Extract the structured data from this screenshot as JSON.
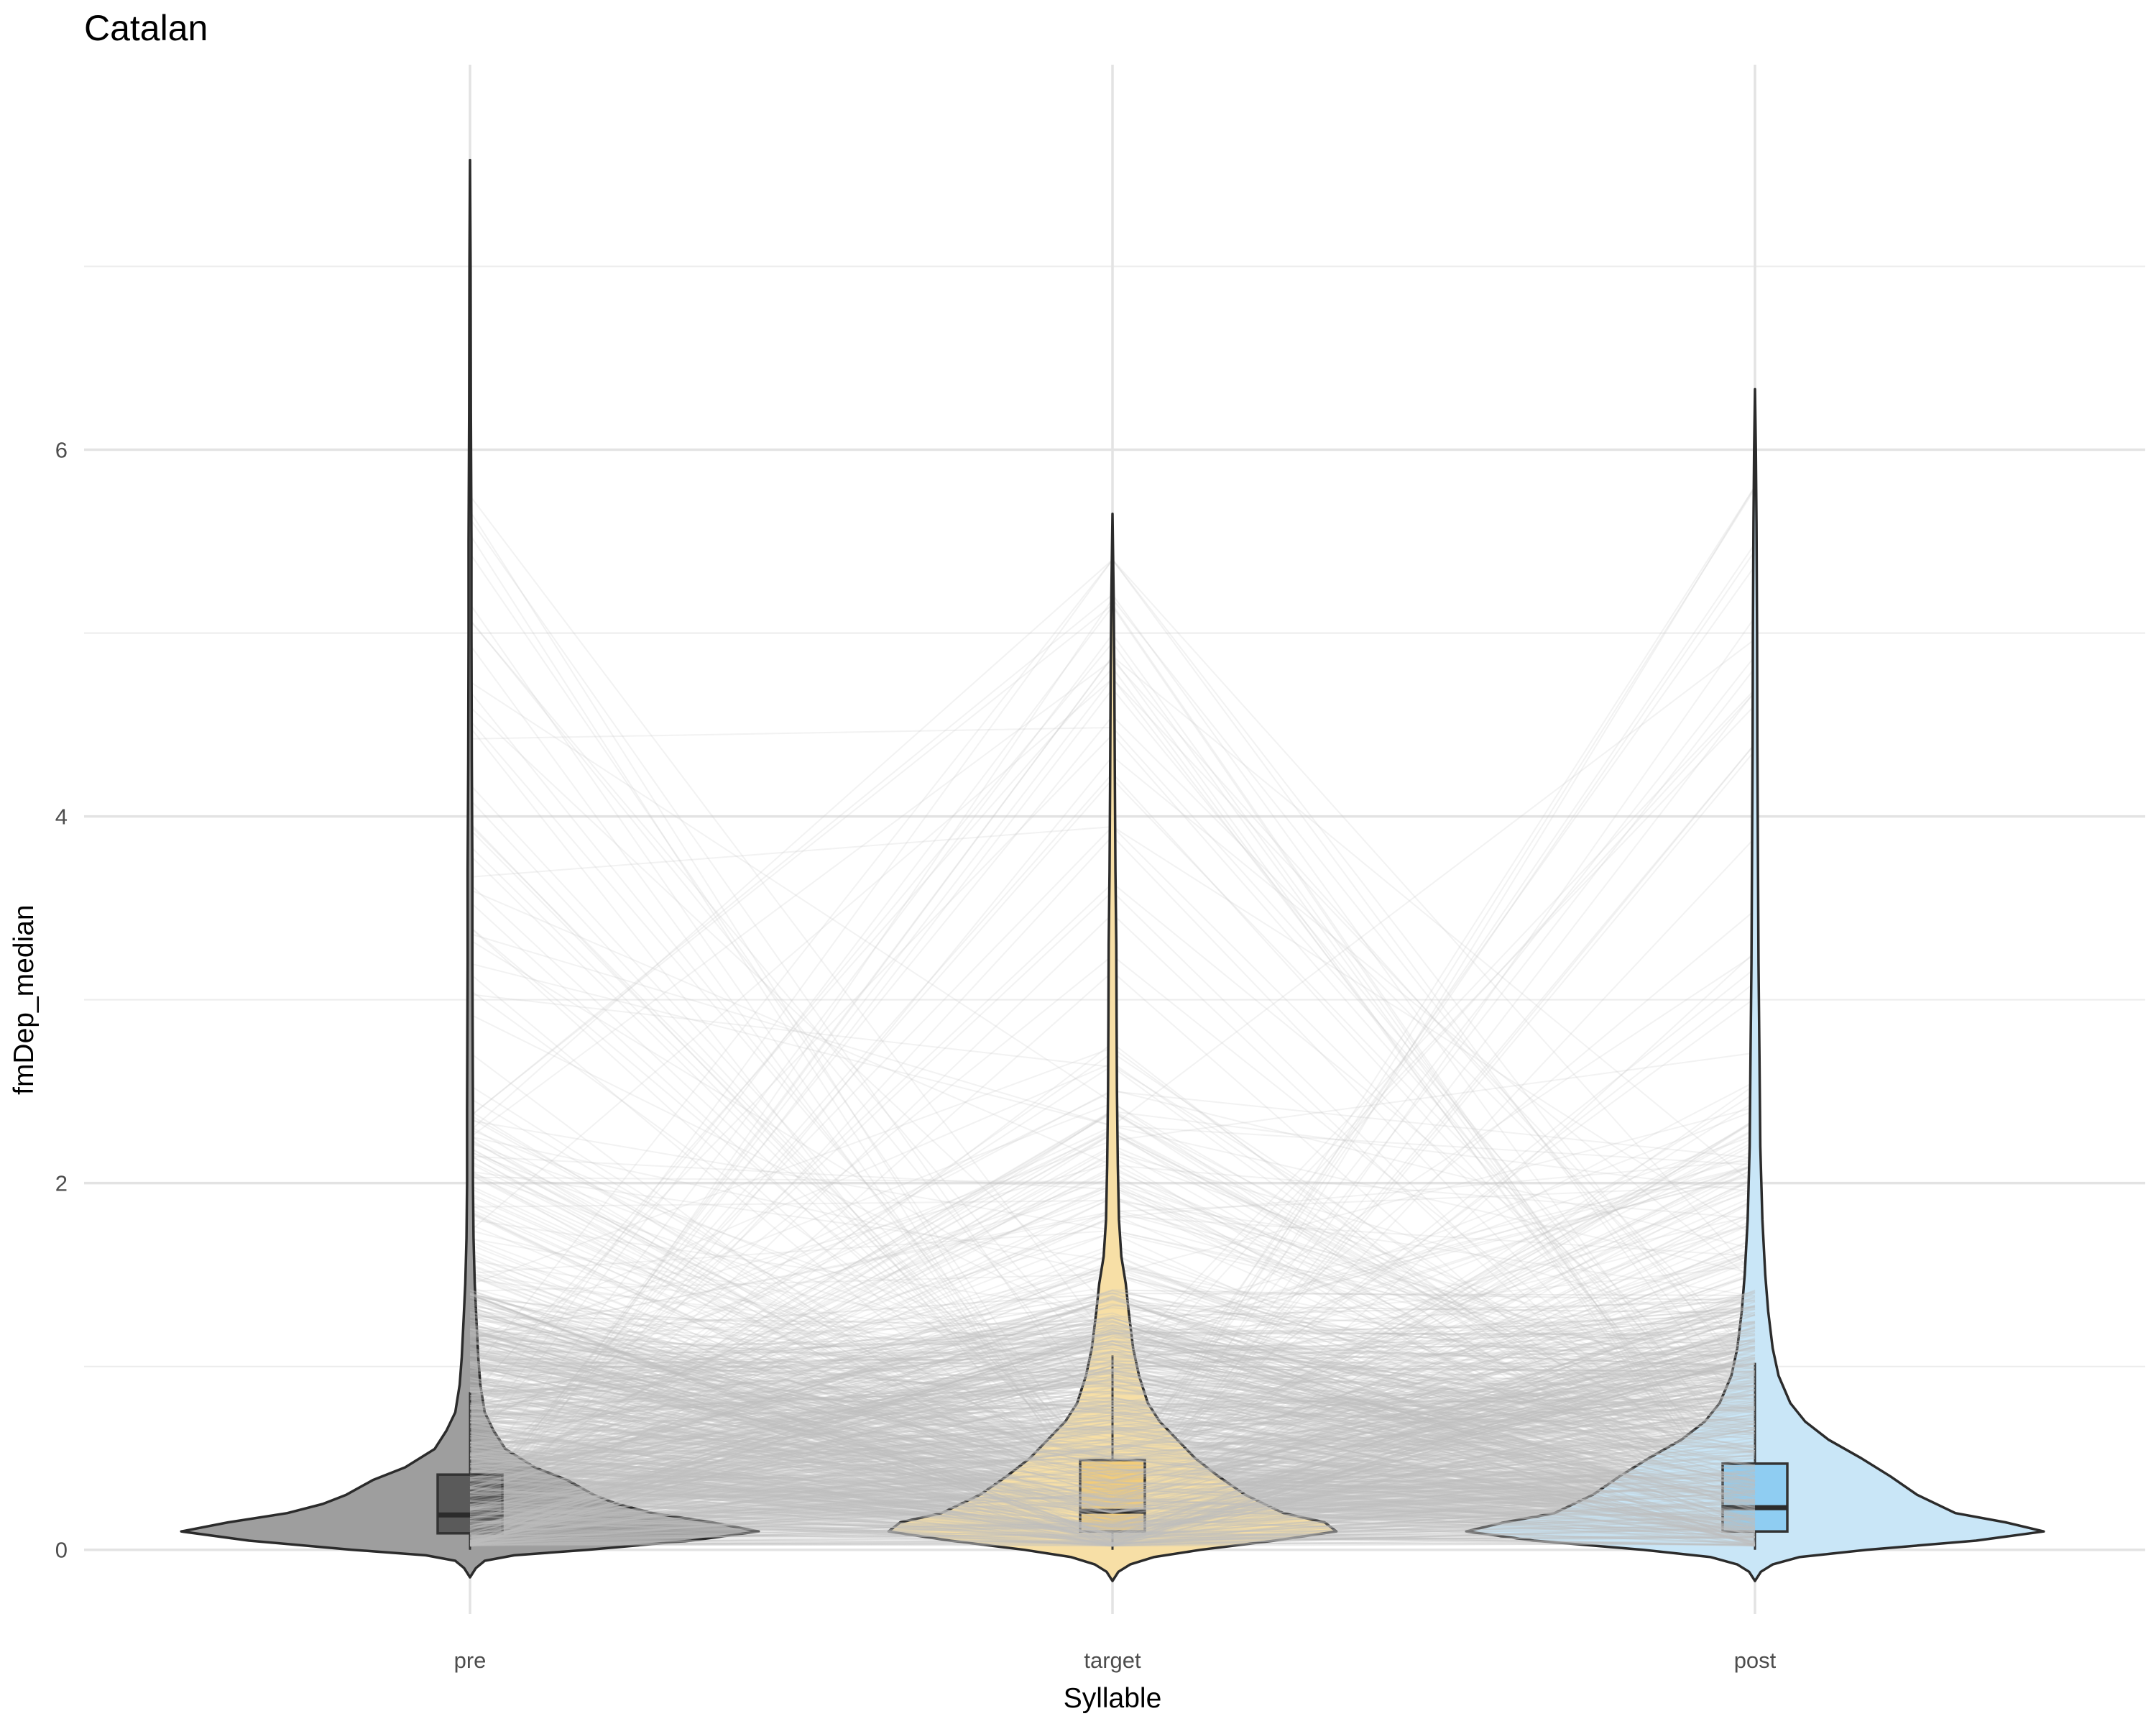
{
  "chart_data": {
    "type": "violin",
    "title": "Catalan",
    "xlabel": "Syllable",
    "ylabel": "fmDep_median",
    "categories": [
      "pre",
      "target",
      "post"
    ],
    "ylim": [
      -0.35,
      8.1
    ],
    "y_ticks": [
      0,
      2,
      4,
      6
    ],
    "y_minor_ticks": [
      1,
      3,
      5,
      7
    ],
    "grid": true,
    "legend": "none",
    "series": [
      {
        "category": "pre",
        "color": "#9e9e9e",
        "box": {
          "q1": 0.09,
          "median": 0.19,
          "q3": 0.41,
          "whisker_low": 0.0,
          "whisker_high": 0.86
        },
        "max": 7.58,
        "min": -0.15,
        "density_profile": [
          [
            -0.15,
            0.0
          ],
          [
            -0.1,
            0.02
          ],
          [
            -0.06,
            0.05
          ],
          [
            -0.03,
            0.15
          ],
          [
            0.0,
            0.4
          ],
          [
            0.05,
            0.75
          ],
          [
            0.1,
            0.98
          ],
          [
            0.15,
            0.82
          ],
          [
            0.2,
            0.62
          ],
          [
            0.25,
            0.5
          ],
          [
            0.3,
            0.42
          ],
          [
            0.38,
            0.33
          ],
          [
            0.45,
            0.22
          ],
          [
            0.55,
            0.12
          ],
          [
            0.65,
            0.08
          ],
          [
            0.75,
            0.05
          ],
          [
            0.9,
            0.035
          ],
          [
            1.05,
            0.028
          ],
          [
            1.25,
            0.022
          ],
          [
            1.45,
            0.016
          ],
          [
            1.7,
            0.012
          ],
          [
            2.0,
            0.01
          ],
          [
            2.4,
            0.01
          ],
          [
            2.8,
            0.009
          ],
          [
            3.2,
            0.008
          ],
          [
            3.7,
            0.008
          ],
          [
            4.3,
            0.006
          ],
          [
            5.0,
            0.005
          ],
          [
            5.5,
            0.005
          ],
          [
            6.2,
            0.003
          ],
          [
            7.0,
            0.002
          ],
          [
            7.58,
            0.0
          ]
        ]
      },
      {
        "category": "target",
        "color": "#f7dfa6",
        "box": {
          "q1": 0.1,
          "median": 0.21,
          "q3": 0.49,
          "whisker_low": 0.0,
          "whisker_high": 1.06
        },
        "max": 5.65,
        "min": -0.17,
        "density_profile": [
          [
            -0.17,
            0.0
          ],
          [
            -0.12,
            0.02
          ],
          [
            -0.08,
            0.06
          ],
          [
            -0.04,
            0.14
          ],
          [
            0.0,
            0.3
          ],
          [
            0.05,
            0.55
          ],
          [
            0.1,
            0.76
          ],
          [
            0.15,
            0.72
          ],
          [
            0.2,
            0.58
          ],
          [
            0.3,
            0.45
          ],
          [
            0.4,
            0.36
          ],
          [
            0.5,
            0.28
          ],
          [
            0.6,
            0.22
          ],
          [
            0.7,
            0.16
          ],
          [
            0.8,
            0.12
          ],
          [
            0.95,
            0.09
          ],
          [
            1.1,
            0.07
          ],
          [
            1.3,
            0.055
          ],
          [
            1.45,
            0.045
          ],
          [
            1.6,
            0.03
          ],
          [
            1.8,
            0.022
          ],
          [
            2.1,
            0.018
          ],
          [
            2.5,
            0.015
          ],
          [
            2.9,
            0.014
          ],
          [
            3.3,
            0.013
          ],
          [
            3.7,
            0.01
          ],
          [
            4.2,
            0.008
          ],
          [
            4.8,
            0.006
          ],
          [
            5.2,
            0.004
          ],
          [
            5.65,
            0.0
          ]
        ]
      },
      {
        "category": "post",
        "color": "#c9e6f7",
        "box": {
          "q1": 0.1,
          "median": 0.23,
          "q3": 0.47,
          "whisker_low": 0.0,
          "whisker_high": 1.02
        },
        "max": 6.33,
        "min": -0.17,
        "density_profile": [
          [
            -0.17,
            0.0
          ],
          [
            -0.12,
            0.02
          ],
          [
            -0.08,
            0.06
          ],
          [
            -0.04,
            0.15
          ],
          [
            0.0,
            0.38
          ],
          [
            0.05,
            0.75
          ],
          [
            0.1,
            0.98
          ],
          [
            0.15,
            0.85
          ],
          [
            0.2,
            0.68
          ],
          [
            0.3,
            0.55
          ],
          [
            0.4,
            0.46
          ],
          [
            0.5,
            0.36
          ],
          [
            0.6,
            0.25
          ],
          [
            0.7,
            0.17
          ],
          [
            0.8,
            0.12
          ],
          [
            0.95,
            0.08
          ],
          [
            1.1,
            0.06
          ],
          [
            1.3,
            0.045
          ],
          [
            1.5,
            0.035
          ],
          [
            1.8,
            0.025
          ],
          [
            2.2,
            0.018
          ],
          [
            2.7,
            0.015
          ],
          [
            3.2,
            0.012
          ],
          [
            3.8,
            0.01
          ],
          [
            4.4,
            0.008
          ],
          [
            5.0,
            0.007
          ],
          [
            5.6,
            0.005
          ],
          [
            6.0,
            0.003
          ],
          [
            6.33,
            0.0
          ]
        ]
      }
    ],
    "paired_lines": {
      "color": "#c4c4c4",
      "description_count": 600
    }
  }
}
